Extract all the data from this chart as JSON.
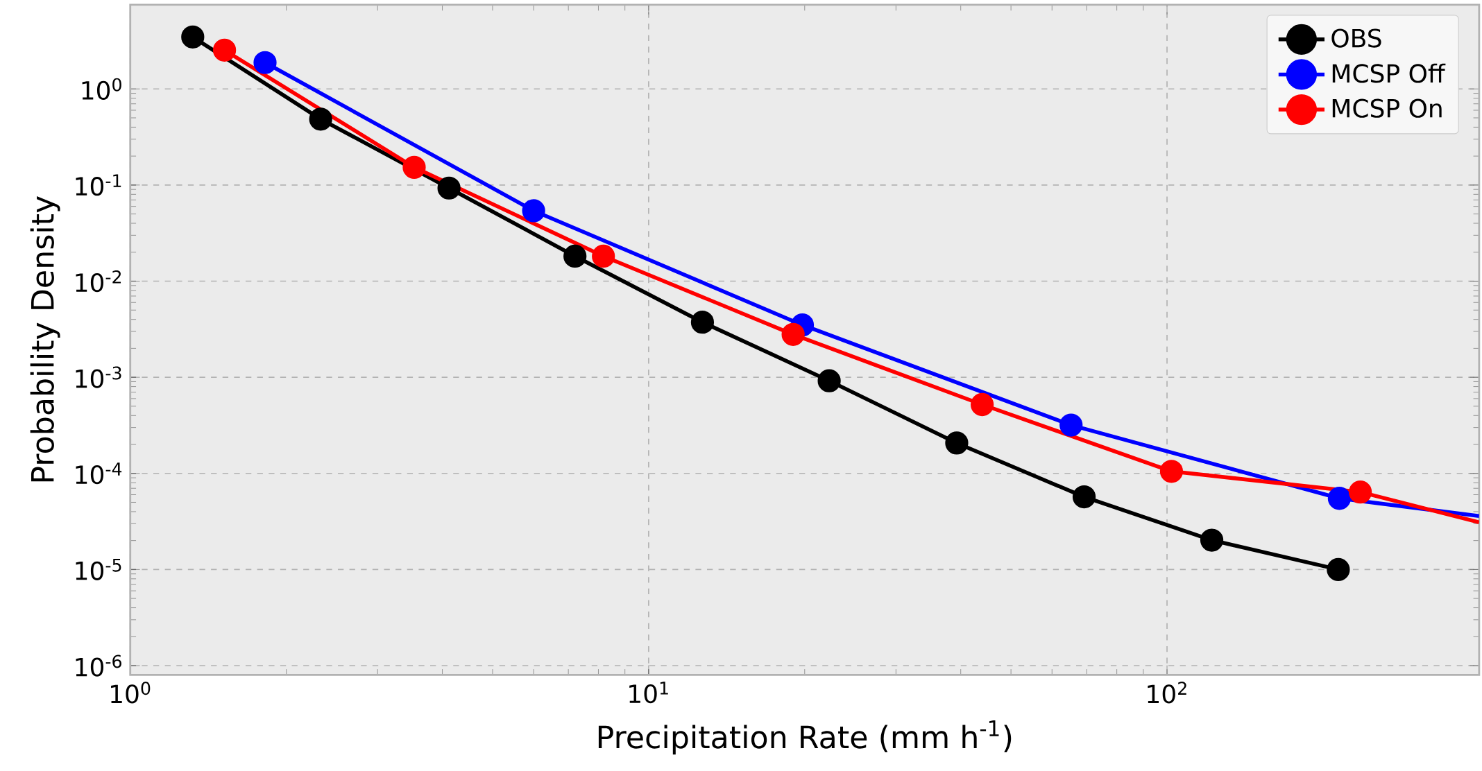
{
  "chart_data": {
    "type": "line",
    "xlabel": "Precipitation Rate (mm h$^{-1}$)",
    "ylabel": "Probability Density",
    "log": "xy",
    "grid": true,
    "legend": "top right",
    "marker": "circle",
    "line_style": "solid",
    "xlim": [
      1,
      400
    ],
    "ylim": [
      8e-07,
      7.5
    ],
    "xticks": [
      {
        "value": 1,
        "label": "10$^{0}$"
      },
      {
        "value": 10,
        "label": "10$^{1}$"
      },
      {
        "value": 100,
        "label": "10$^{2}$"
      }
    ],
    "yticks": [
      {
        "value": 1e-06,
        "label": "10$^{-6}$"
      },
      {
        "value": 1e-05,
        "label": "10$^{-5}$"
      },
      {
        "value": 0.0001,
        "label": "10$^{-4}$"
      },
      {
        "value": 0.001,
        "label": "10$^{-3}$"
      },
      {
        "value": 0.01,
        "label": "10$^{-2}$"
      },
      {
        "value": 0.1,
        "label": "10$^{-1}$"
      },
      {
        "value": 1,
        "label": "10$^{0}$"
      }
    ],
    "series": [
      {
        "name": "OBS",
        "color": "#000000",
        "x": [
          1.32,
          2.33,
          4.12,
          7.21,
          12.7,
          22.3,
          39.3,
          69.2,
          122,
          214
        ],
        "values": [
          3.47,
          0.485,
          0.093,
          0.0182,
          0.00374,
          0.00092,
          0.000207,
          5.7e-05,
          2.02e-05,
          1e-05
        ]
      },
      {
        "name": "MCSP Off",
        "color": "#0000ff",
        "x": [
          1.82,
          6.0,
          19.8,
          65.3,
          215,
          400
        ],
        "values": [
          1.88,
          0.054,
          0.0035,
          0.000318,
          5.5e-05,
          3.6e-05
        ]
      },
      {
        "name": "MCSP On",
        "color": "#ff0000",
        "x": [
          1.52,
          3.53,
          8.18,
          19.0,
          44.0,
          102,
          236,
          400
        ],
        "values": [
          2.53,
          0.153,
          0.0182,
          0.00279,
          0.00052,
          0.000105,
          6.4e-05,
          3.1e-05
        ]
      }
    ]
  }
}
